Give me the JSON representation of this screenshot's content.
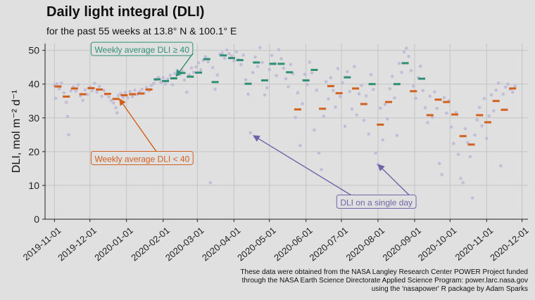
{
  "chart_data": {
    "type": "scatter",
    "title": "Daily light integral (DLI)",
    "subtitle": "for the past 55 weeks at 13.8° N & 100.1° E",
    "ylabel": "DLI, mol m⁻² d⁻¹",
    "xlabel": "",
    "ylim": [
      0,
      52
    ],
    "xlim": [
      "2019-10-24",
      "2020-12-06"
    ],
    "y_ticks": [
      0,
      10,
      20,
      30,
      40,
      50
    ],
    "x_ticks": [
      "2019-11-01",
      "2019-12-01",
      "2020-01-01",
      "2020-02-01",
      "2020-03-01",
      "2020-04-01",
      "2020-05-01",
      "2020-06-01",
      "2020-07-01",
      "2020-08-01",
      "2020-09-01",
      "2020-10-01",
      "2020-11-01",
      "2020-12-01"
    ],
    "grid": true,
    "threshold": 40,
    "colors": {
      "high": "#2f8f73",
      "low": "#d2601e",
      "daily": "#b9b2d6",
      "annotation": "#6f64a8"
    },
    "weekly_average": [
      {
        "date": "2019-11-04",
        "value": 39.3
      },
      {
        "date": "2019-11-11",
        "value": 36.3
      },
      {
        "date": "2019-11-18",
        "value": 38.7
      },
      {
        "date": "2019-11-25",
        "value": 37.0
      },
      {
        "date": "2019-12-02",
        "value": 38.8
      },
      {
        "date": "2019-12-09",
        "value": 38.4
      },
      {
        "date": "2019-12-16",
        "value": 37.1
      },
      {
        "date": "2019-12-23",
        "value": 35.6
      },
      {
        "date": "2019-12-30",
        "value": 36.7
      },
      {
        "date": "2020-01-06",
        "value": 37.0
      },
      {
        "date": "2020-01-13",
        "value": 37.2
      },
      {
        "date": "2020-01-20",
        "value": 38.4
      },
      {
        "date": "2020-01-27",
        "value": 41.4
      },
      {
        "date": "2020-02-03",
        "value": 40.9
      },
      {
        "date": "2020-02-10",
        "value": 41.7
      },
      {
        "date": "2020-02-17",
        "value": 43.3
      },
      {
        "date": "2020-02-24",
        "value": 42.2
      },
      {
        "date": "2020-03-02",
        "value": 43.4
      },
      {
        "date": "2020-03-09",
        "value": 47.4
      },
      {
        "date": "2020-03-16",
        "value": 40.6
      },
      {
        "date": "2020-03-23",
        "value": 48.5
      },
      {
        "date": "2020-03-30",
        "value": 47.7
      },
      {
        "date": "2020-04-06",
        "value": 47.1
      },
      {
        "date": "2020-04-13",
        "value": 40.1
      },
      {
        "date": "2020-04-20",
        "value": 46.4
      },
      {
        "date": "2020-04-27",
        "value": 41.1
      },
      {
        "date": "2020-05-04",
        "value": 46.0
      },
      {
        "date": "2020-05-11",
        "value": 46.0
      },
      {
        "date": "2020-05-18",
        "value": 43.5
      },
      {
        "date": "2020-05-25",
        "value": 32.5
      },
      {
        "date": "2020-06-01",
        "value": 41.1
      },
      {
        "date": "2020-06-08",
        "value": 44.2
      },
      {
        "date": "2020-06-15",
        "value": 32.7
      },
      {
        "date": "2020-06-22",
        "value": 39.4
      },
      {
        "date": "2020-06-29",
        "value": 37.3
      },
      {
        "date": "2020-07-06",
        "value": 42.0
      },
      {
        "date": "2020-07-13",
        "value": 38.7
      },
      {
        "date": "2020-07-20",
        "value": 34.1
      },
      {
        "date": "2020-07-27",
        "value": 40.0
      },
      {
        "date": "2020-08-03",
        "value": 28.0
      },
      {
        "date": "2020-08-10",
        "value": 34.7
      },
      {
        "date": "2020-08-17",
        "value": 40.0
      },
      {
        "date": "2020-08-24",
        "value": 46.2
      },
      {
        "date": "2020-08-31",
        "value": 37.9
      },
      {
        "date": "2020-09-07",
        "value": 41.6
      },
      {
        "date": "2020-09-14",
        "value": 30.8
      },
      {
        "date": "2020-09-21",
        "value": 35.4
      },
      {
        "date": "2020-09-28",
        "value": 34.7
      },
      {
        "date": "2020-10-05",
        "value": 31.0
      },
      {
        "date": "2020-10-12",
        "value": 24.6
      },
      {
        "date": "2020-10-19",
        "value": 22.1
      },
      {
        "date": "2020-10-26",
        "value": 30.8
      },
      {
        "date": "2020-11-02",
        "value": 28.7
      },
      {
        "date": "2020-11-09",
        "value": 35.0
      },
      {
        "date": "2020-11-16",
        "value": 32.4
      },
      {
        "date": "2020-11-23",
        "value": 38.7
      }
    ],
    "daily": [
      [
        "2019-11-01",
        39.5
      ],
      [
        "2019-11-02",
        35.8
      ],
      [
        "2019-11-03",
        40.1
      ],
      [
        "2019-11-05",
        38.6
      ],
      [
        "2019-11-07",
        40.3
      ],
      [
        "2019-11-09",
        37.4
      ],
      [
        "2019-11-11",
        34.6
      ],
      [
        "2019-11-12",
        30.4
      ],
      [
        "2019-11-13",
        25.0
      ],
      [
        "2019-11-15",
        38.0
      ],
      [
        "2019-11-17",
        39.2
      ],
      [
        "2019-11-19",
        37.9
      ],
      [
        "2019-11-21",
        39.8
      ],
      [
        "2019-11-23",
        36.5
      ],
      [
        "2019-11-25",
        35.2
      ],
      [
        "2019-11-27",
        38.3
      ],
      [
        "2019-11-29",
        36.9
      ],
      [
        "2019-12-01",
        39.1
      ],
      [
        "2019-12-03",
        38.0
      ],
      [
        "2019-12-05",
        40.2
      ],
      [
        "2019-12-07",
        37.6
      ],
      [
        "2019-12-09",
        39.3
      ],
      [
        "2019-12-11",
        36.4
      ],
      [
        "2019-12-13",
        38.1
      ],
      [
        "2019-12-15",
        37.0
      ],
      [
        "2019-12-17",
        36.2
      ],
      [
        "2019-12-19",
        35.1
      ],
      [
        "2019-12-21",
        34.4
      ],
      [
        "2019-12-23",
        33.0
      ],
      [
        "2019-12-24",
        31.5
      ],
      [
        "2019-12-25",
        36.6
      ],
      [
        "2019-12-27",
        37.2
      ],
      [
        "2019-12-29",
        36.0
      ],
      [
        "2019-12-31",
        37.5
      ],
      [
        "2020-01-02",
        35.9
      ],
      [
        "2020-01-04",
        37.8
      ],
      [
        "2020-01-06",
        36.3
      ],
      [
        "2020-01-08",
        38.2
      ],
      [
        "2020-01-10",
        36.9
      ],
      [
        "2020-01-12",
        37.7
      ],
      [
        "2020-01-14",
        38.5
      ],
      [
        "2020-01-16",
        37.3
      ],
      [
        "2020-01-18",
        39.0
      ],
      [
        "2020-01-20",
        38.0
      ],
      [
        "2020-01-22",
        39.6
      ],
      [
        "2020-01-24",
        40.2
      ],
      [
        "2020-01-26",
        41.3
      ],
      [
        "2020-01-28",
        42.0
      ],
      [
        "2020-01-30",
        40.5
      ],
      [
        "2020-02-01",
        41.9
      ],
      [
        "2020-02-03",
        40.0
      ],
      [
        "2020-02-05",
        41.5
      ],
      [
        "2020-02-07",
        42.6
      ],
      [
        "2020-02-09",
        39.8
      ],
      [
        "2020-02-11",
        43.1
      ],
      [
        "2020-02-13",
        44.0
      ],
      [
        "2020-02-15",
        42.8
      ],
      [
        "2020-02-17",
        43.9
      ],
      [
        "2020-02-19",
        41.2
      ],
      [
        "2020-02-21",
        37.6
      ],
      [
        "2020-02-23",
        42.7
      ],
      [
        "2020-02-25",
        44.8
      ],
      [
        "2020-02-27",
        43.5
      ],
      [
        "2020-02-29",
        45.1
      ],
      [
        "2020-03-02",
        46.3
      ],
      [
        "2020-03-04",
        44.2
      ],
      [
        "2020-03-06",
        47.0
      ],
      [
        "2020-03-08",
        48.1
      ],
      [
        "2020-03-10",
        46.6
      ],
      [
        "2020-03-12",
        10.8
      ],
      [
        "2020-03-14",
        44.9
      ],
      [
        "2020-03-16",
        38.5
      ],
      [
        "2020-03-18",
        42.7
      ],
      [
        "2020-03-20",
        48.8
      ],
      [
        "2020-03-22",
        49.2
      ],
      [
        "2020-03-24",
        47.6
      ],
      [
        "2020-03-26",
        50.1
      ],
      [
        "2020-03-28",
        49.0
      ],
      [
        "2020-03-30",
        48.3
      ],
      [
        "2020-04-01",
        46.9
      ],
      [
        "2020-04-03",
        49.6
      ],
      [
        "2020-04-05",
        47.2
      ],
      [
        "2020-04-07",
        45.8
      ],
      [
        "2020-04-09",
        48.6
      ],
      [
        "2020-04-11",
        41.3
      ],
      [
        "2020-04-13",
        37.0
      ],
      [
        "2020-04-15",
        25.6
      ],
      [
        "2020-04-17",
        43.4
      ],
      [
        "2020-04-19",
        48.0
      ],
      [
        "2020-04-21",
        45.2
      ],
      [
        "2020-04-23",
        50.8
      ],
      [
        "2020-04-25",
        46.4
      ],
      [
        "2020-04-27",
        36.8
      ],
      [
        "2020-04-29",
        38.9
      ],
      [
        "2020-05-01",
        44.3
      ],
      [
        "2020-05-03",
        48.5
      ],
      [
        "2020-05-05",
        46.1
      ],
      [
        "2020-05-07",
        42.5
      ],
      [
        "2020-05-09",
        50.2
      ],
      [
        "2020-05-11",
        47.5
      ],
      [
        "2020-05-13",
        44.7
      ],
      [
        "2020-05-15",
        41.6
      ],
      [
        "2020-05-17",
        39.2
      ],
      [
        "2020-05-19",
        45.8
      ],
      [
        "2020-05-21",
        43.1
      ],
      [
        "2020-05-23",
        30.1
      ],
      [
        "2020-05-25",
        37.4
      ],
      [
        "2020-05-27",
        21.8
      ],
      [
        "2020-05-29",
        34.2
      ],
      [
        "2020-05-31",
        42.9
      ],
      [
        "2020-06-02",
        39.8
      ],
      [
        "2020-06-04",
        46.5
      ],
      [
        "2020-06-06",
        43.3
      ],
      [
        "2020-06-08",
        26.4
      ],
      [
        "2020-06-10",
        38.2
      ],
      [
        "2020-06-12",
        19.6
      ],
      [
        "2020-06-14",
        14.7
      ],
      [
        "2020-06-16",
        30.5
      ],
      [
        "2020-06-18",
        40.7
      ],
      [
        "2020-06-20",
        35.6
      ],
      [
        "2020-06-22",
        41.9
      ],
      [
        "2020-06-24",
        38.1
      ],
      [
        "2020-06-26",
        33.2
      ],
      [
        "2020-06-28",
        44.6
      ],
      [
        "2020-06-30",
        36.3
      ],
      [
        "2020-07-02",
        40.4
      ],
      [
        "2020-07-04",
        27.5
      ],
      [
        "2020-07-06",
        43.7
      ],
      [
        "2020-07-08",
        37.8
      ],
      [
        "2020-07-10",
        32.6
      ],
      [
        "2020-07-12",
        45.2
      ],
      [
        "2020-07-14",
        30.9
      ],
      [
        "2020-07-16",
        37.1
      ],
      [
        "2020-07-18",
        39.6
      ],
      [
        "2020-07-20",
        29.3
      ],
      [
        "2020-07-22",
        36.5
      ],
      [
        "2020-07-24",
        25.2
      ],
      [
        "2020-07-26",
        42.8
      ],
      [
        "2020-07-28",
        38.4
      ],
      [
        "2020-07-30",
        19.6
      ],
      [
        "2020-08-01",
        16.2
      ],
      [
        "2020-08-03",
        32.9
      ],
      [
        "2020-08-05",
        23.5
      ],
      [
        "2020-08-07",
        34.0
      ],
      [
        "2020-08-09",
        29.7
      ],
      [
        "2020-08-11",
        38.6
      ],
      [
        "2020-08-13",
        42.3
      ],
      [
        "2020-08-15",
        35.9
      ],
      [
        "2020-08-17",
        24.8
      ],
      [
        "2020-08-19",
        46.1
      ],
      [
        "2020-08-21",
        43.5
      ],
      [
        "2020-08-23",
        49.5
      ],
      [
        "2020-08-25",
        50.6
      ],
      [
        "2020-08-27",
        48.2
      ],
      [
        "2020-08-29",
        44.0
      ],
      [
        "2020-08-31",
        39.4
      ],
      [
        "2020-09-02",
        35.8
      ],
      [
        "2020-09-04",
        41.9
      ],
      [
        "2020-09-06",
        45.3
      ],
      [
        "2020-09-08",
        38.1
      ],
      [
        "2020-09-10",
        33.0
      ],
      [
        "2020-09-12",
        28.6
      ],
      [
        "2020-09-14",
        36.4
      ],
      [
        "2020-09-16",
        30.2
      ],
      [
        "2020-09-18",
        37.7
      ],
      [
        "2020-09-20",
        32.8
      ],
      [
        "2020-09-22",
        16.5
      ],
      [
        "2020-09-24",
        13.2
      ],
      [
        "2020-09-26",
        36.0
      ],
      [
        "2020-09-28",
        31.4
      ],
      [
        "2020-09-30",
        35.1
      ],
      [
        "2020-10-02",
        27.3
      ],
      [
        "2020-10-04",
        22.4
      ],
      [
        "2020-10-06",
        31.6
      ],
      [
        "2020-10-08",
        19.2
      ],
      [
        "2020-10-10",
        12.1
      ],
      [
        "2020-10-12",
        10.8
      ],
      [
        "2020-10-14",
        26.8
      ],
      [
        "2020-10-16",
        22.7
      ],
      [
        "2020-10-18",
        18.5
      ],
      [
        "2020-10-20",
        6.3
      ],
      [
        "2020-10-22",
        24.9
      ],
      [
        "2020-10-24",
        29.4
      ],
      [
        "2020-10-26",
        33.1
      ],
      [
        "2020-10-28",
        27.6
      ],
      [
        "2020-10-30",
        35.7
      ],
      [
        "2020-11-01",
        23.9
      ],
      [
        "2020-11-03",
        30.6
      ],
      [
        "2020-11-05",
        36.8
      ],
      [
        "2020-11-07",
        32.1
      ],
      [
        "2020-11-09",
        38.2
      ],
      [
        "2020-11-11",
        40.3
      ],
      [
        "2020-11-13",
        15.8
      ],
      [
        "2020-11-15",
        37.0
      ],
      [
        "2020-11-17",
        39.1
      ],
      [
        "2020-11-19",
        40.0
      ],
      [
        "2020-11-21",
        38.5
      ],
      [
        "2020-11-23",
        37.6
      ],
      [
        "2020-11-25",
        39.4
      ]
    ],
    "annotations": [
      {
        "id": "high",
        "text": "Weekly average DLI ≥ 40",
        "label_x": "2019-12-05",
        "label_y": 50.3,
        "target_x": "2020-02-12",
        "target_y": 42.3
      },
      {
        "id": "low",
        "text": "Weekly average DLI < 40",
        "label_x": "2019-12-05",
        "label_y": 18.0,
        "target_x": "2019-12-26",
        "target_y": 35.6
      },
      {
        "id": "daily",
        "text": "DLI on a single day",
        "label_x": "2020-06-30",
        "label_y": 5.1,
        "targets": [
          [
            "2020-04-15",
            25.6
          ],
          [
            "2020-08-01",
            16.2
          ]
        ]
      }
    ],
    "caption": [
      "These data were obtained from the NASA Langley Research Center POWER Project funded",
      "through the NASA Earth Science Directorate Applied Science Program: power.larc.nasa.gov",
      "using the 'nasapower' R package by Adam Sparks"
    ]
  }
}
